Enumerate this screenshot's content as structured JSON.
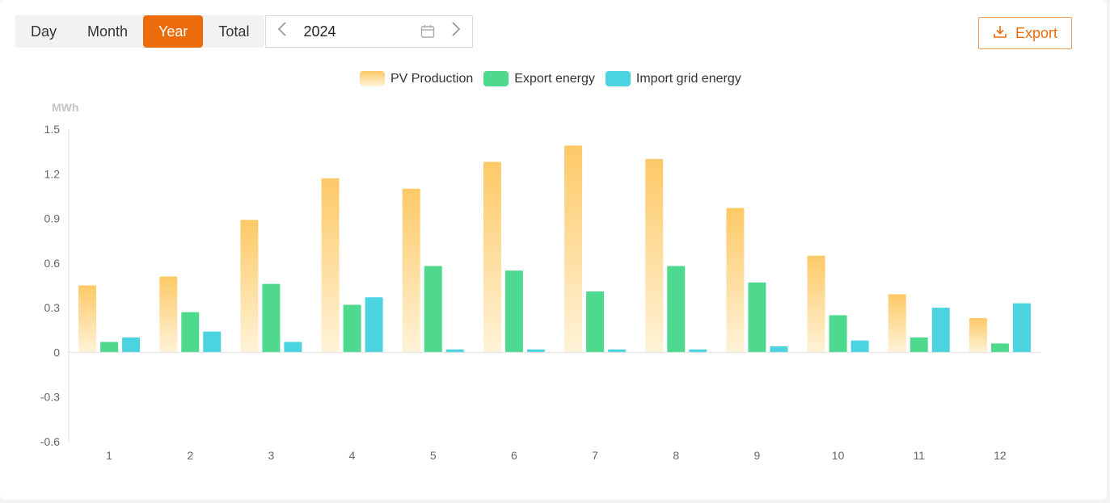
{
  "tabs": [
    {
      "label": "Day",
      "active": false
    },
    {
      "label": "Month",
      "active": false
    },
    {
      "label": "Year",
      "active": true
    },
    {
      "label": "Total",
      "active": false
    }
  ],
  "date_picker": {
    "value": "2024",
    "prev_icon": "chevron-left-icon",
    "next_icon": "chevron-right-icon",
    "calendar_icon": "calendar-icon"
  },
  "export_button": {
    "label": "Export",
    "icon": "download-icon"
  },
  "colors": {
    "accent": "#ec6c0c",
    "pv": "#fdc967",
    "pv_light": "#fff3d8",
    "export": "#4fd98e",
    "import": "#4cd3e0"
  },
  "chart_data": {
    "type": "bar",
    "unit": "MWh",
    "categories": [
      "1",
      "2",
      "3",
      "4",
      "5",
      "6",
      "7",
      "8",
      "9",
      "10",
      "11",
      "12"
    ],
    "series": [
      {
        "name": "PV Production",
        "color": "#fdc967",
        "values": [
          0.45,
          0.51,
          0.89,
          1.17,
          1.1,
          1.28,
          1.39,
          1.3,
          0.97,
          0.65,
          0.39,
          0.23
        ]
      },
      {
        "name": "Export energy",
        "color": "#4fd98e",
        "values": [
          0.07,
          0.27,
          0.46,
          0.32,
          0.58,
          0.55,
          0.41,
          0.58,
          0.47,
          0.25,
          0.1,
          0.06
        ]
      },
      {
        "name": "Import grid energy",
        "color": "#4cd3e0",
        "values": [
          0.1,
          0.14,
          0.07,
          0.37,
          0.02,
          0.02,
          0.02,
          0.02,
          0.04,
          0.08,
          0.3,
          0.33
        ]
      }
    ],
    "yticks": [
      "1.5",
      "1.2",
      "0.9",
      "0.6",
      "0.3",
      "0",
      "-0.3",
      "-0.6"
    ],
    "ylim": [
      -0.6,
      1.5
    ],
    "legend_position": "top-center",
    "grid": false
  }
}
